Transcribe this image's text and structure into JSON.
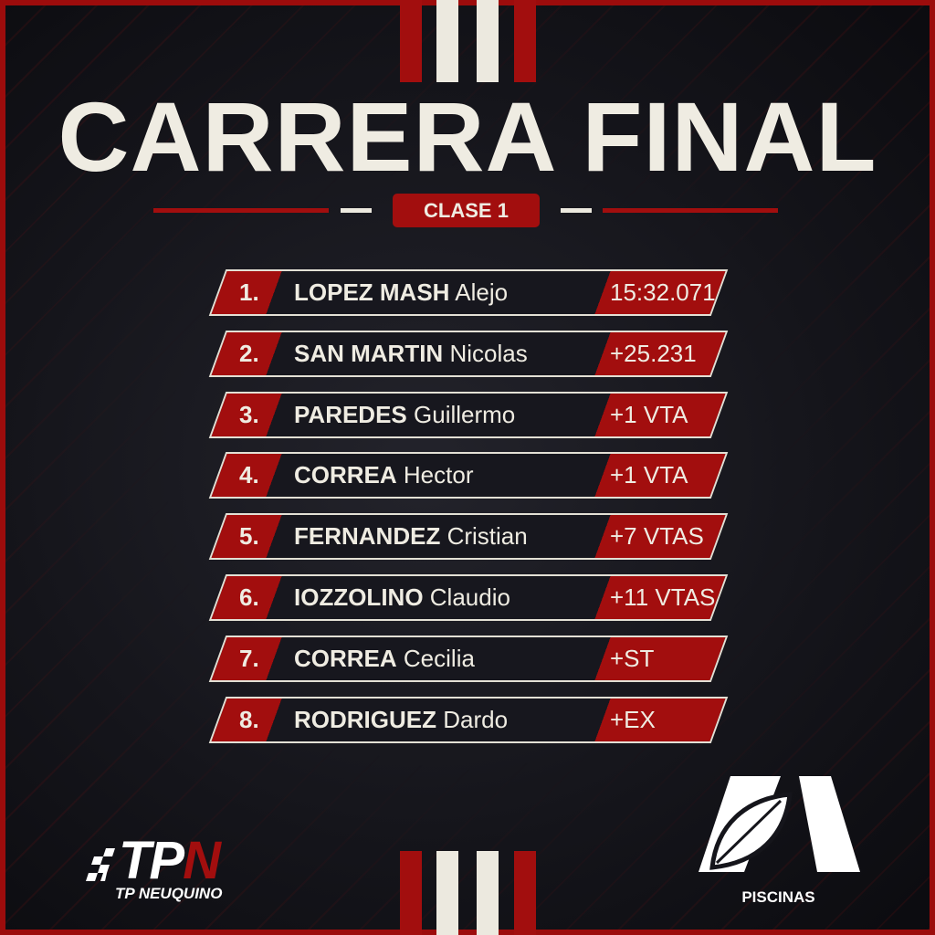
{
  "title": "CARRERA FINAL",
  "class_badge": "CLASE 1",
  "results": [
    {
      "pos": "1.",
      "surname": "LOPEZ MASH",
      "first": "Alejo",
      "time": "15:32.071"
    },
    {
      "pos": "2.",
      "surname": "SAN MARTIN",
      "first": "Nicolas",
      "time": "+25.231"
    },
    {
      "pos": "3.",
      "surname": "PAREDES",
      "first": "Guillermo",
      "time": "+1 VTA"
    },
    {
      "pos": "4.",
      "surname": "CORREA",
      "first": "Hector",
      "time": "+1 VTA"
    },
    {
      "pos": "5.",
      "surname": "FERNANDEZ",
      "first": "Cristian",
      "time": "+7 VTAS"
    },
    {
      "pos": "6.",
      "surname": "IOZZOLINO",
      "first": "Claudio",
      "time": "+11 VTAS"
    },
    {
      "pos": "7.",
      "surname": "CORREA",
      "first": "Cecilia",
      "time": "+ST"
    },
    {
      "pos": "8.",
      "surname": "RODRIGUEZ",
      "first": "Dardo",
      "time": "+EX"
    }
  ],
  "logos": {
    "tpn": {
      "mark_a": "TP",
      "mark_b": "N",
      "sub": "TP NEUQUINO"
    },
    "sponsor": {
      "label": "PISCINAS"
    }
  },
  "colors": {
    "accent": "#a20e0e",
    "text": "#efece2",
    "background": "#15151b"
  }
}
